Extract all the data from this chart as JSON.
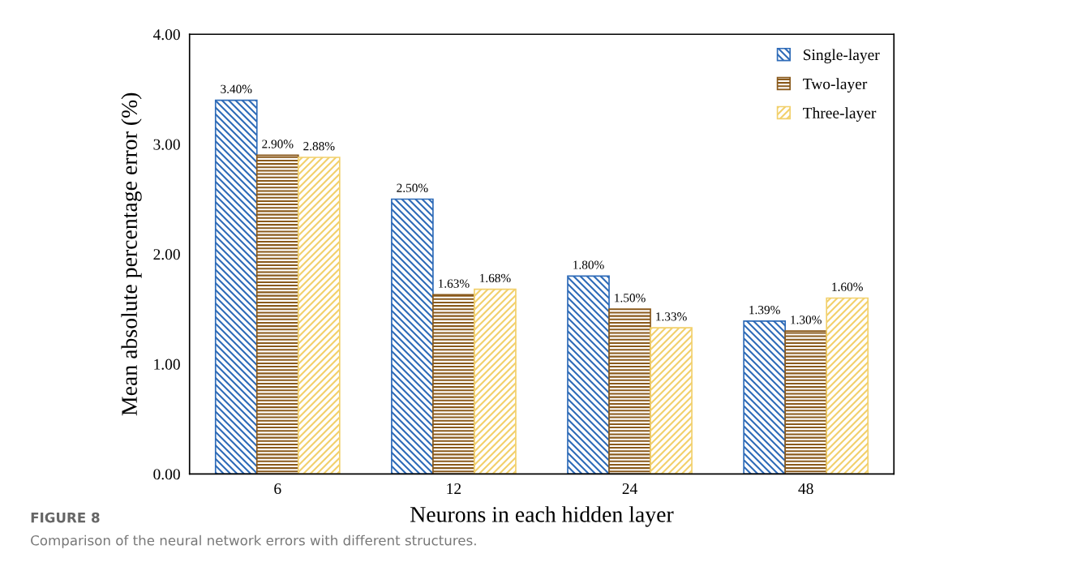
{
  "chart_data": {
    "type": "bar",
    "xlabel": "Neurons in each hidden layer",
    "ylabel": "Mean absolute percentage error (%)",
    "categories": [
      "6",
      "12",
      "24",
      "48"
    ],
    "series": [
      {
        "name": "Single-layer",
        "color": "#2e6bb8",
        "values": [
          3.4,
          2.5,
          1.8,
          1.39
        ],
        "value_labels": [
          "3.40%",
          "2.50%",
          "1.80%",
          "1.39%"
        ]
      },
      {
        "name": "Two-layer",
        "color": "#8a5a1c",
        "values": [
          2.9,
          1.63,
          1.5,
          1.3
        ],
        "value_labels": [
          "2.90%",
          "1.63%",
          "1.50%",
          "1.30%"
        ]
      },
      {
        "name": "Three-layer",
        "color": "#f2d06b",
        "values": [
          2.88,
          1.68,
          1.33,
          1.6
        ],
        "value_labels": [
          "2.88%",
          "1.68%",
          "1.33%",
          "1.60%"
        ]
      }
    ],
    "ylim": [
      0,
      4
    ],
    "yticks": [
      {
        "value": 0,
        "label": "0.00"
      },
      {
        "value": 1,
        "label": "1.00"
      },
      {
        "value": 2,
        "label": "2.00"
      },
      {
        "value": 3,
        "label": "3.00"
      },
      {
        "value": 4,
        "label": "4.00"
      }
    ],
    "grid": false,
    "legend": "top right",
    "annotations": [
      "FIGURE 8",
      "Comparison of the neural network errors with different structures."
    ]
  }
}
